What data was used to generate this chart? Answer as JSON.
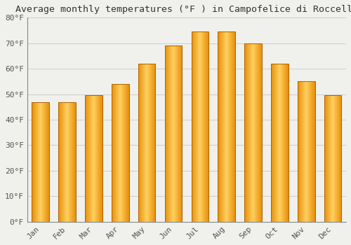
{
  "title": "Average monthly temperatures (°F ) in Campofelice di Roccella",
  "months": [
    "Jan",
    "Feb",
    "Mar",
    "Apr",
    "May",
    "Jun",
    "Jul",
    "Aug",
    "Sep",
    "Oct",
    "Nov",
    "Dec"
  ],
  "values": [
    47,
    47,
    49.5,
    54,
    62,
    69,
    74.5,
    74.5,
    70,
    62,
    55,
    49.5
  ],
  "bar_color_left": "#E8900A",
  "bar_color_mid": "#FFD060",
  "bar_color_right": "#E8900A",
  "bar_edge_color": "#B06000",
  "ylim": [
    0,
    80
  ],
  "yticks": [
    0,
    10,
    20,
    30,
    40,
    50,
    60,
    70,
    80
  ],
  "ytick_labels": [
    "0°F",
    "10°F",
    "20°F",
    "30°F",
    "40°F",
    "50°F",
    "60°F",
    "70°F",
    "80°F"
  ],
  "background_color": "#F0F0EC",
  "grid_color": "#CCCCCC",
  "title_fontsize": 9.5,
  "tick_fontsize": 8,
  "font_family": "monospace",
  "bar_width": 0.65
}
